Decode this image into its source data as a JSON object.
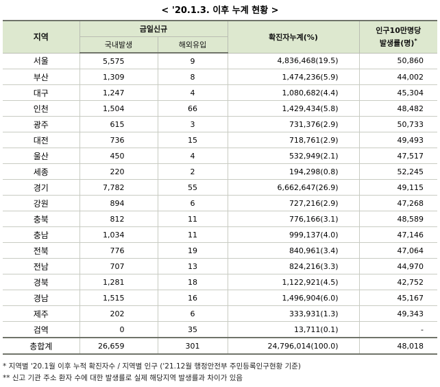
{
  "title": "< '20.1.3. 이후 누계 현황 >",
  "headers": {
    "region": "지역",
    "new_today": "금일신규",
    "domestic": "국내발생",
    "overseas": "해외유입",
    "cumulative": "확진자누계(%)",
    "rate_line1": "인구10만명당",
    "rate_line2": "발생률(명)",
    "rate_mark": "*"
  },
  "rows": [
    {
      "region": "서울",
      "domestic": "5,575",
      "overseas": "9",
      "cumulative": "4,836,468(19.5)",
      "rate": "50,860"
    },
    {
      "region": "부산",
      "domestic": "1,309",
      "overseas": "8",
      "cumulative": "1,474,236(5.9)",
      "rate": "44,002"
    },
    {
      "region": "대구",
      "domestic": "1,247",
      "overseas": "4",
      "cumulative": "1,080,682(4.4)",
      "rate": "45,304"
    },
    {
      "region": "인천",
      "domestic": "1,504",
      "overseas": "66",
      "cumulative": "1,429,434(5.8)",
      "rate": "48,482"
    },
    {
      "region": "광주",
      "domestic": "615",
      "overseas": "3",
      "cumulative": "731,376(2.9)",
      "rate": "50,733"
    },
    {
      "region": "대전",
      "domestic": "736",
      "overseas": "15",
      "cumulative": "718,761(2.9)",
      "rate": "49,493"
    },
    {
      "region": "울산",
      "domestic": "450",
      "overseas": "4",
      "cumulative": "532,949(2.1)",
      "rate": "47,517"
    },
    {
      "region": "세종",
      "domestic": "220",
      "overseas": "2",
      "cumulative": "194,298(0.8)",
      "rate": "52,245"
    },
    {
      "region": "경기",
      "domestic": "7,782",
      "overseas": "55",
      "cumulative": "6,662,647(26.9)",
      "rate": "49,115"
    },
    {
      "region": "강원",
      "domestic": "894",
      "overseas": "6",
      "cumulative": "727,216(2.9)",
      "rate": "47,268"
    },
    {
      "region": "충북",
      "domestic": "812",
      "overseas": "11",
      "cumulative": "776,166(3.1)",
      "rate": "48,589"
    },
    {
      "region": "충남",
      "domestic": "1,034",
      "overseas": "11",
      "cumulative": "999,137(4.0)",
      "rate": "47,146"
    },
    {
      "region": "전북",
      "domestic": "776",
      "overseas": "19",
      "cumulative": "840,961(3.4)",
      "rate": "47,064"
    },
    {
      "region": "전남",
      "domestic": "707",
      "overseas": "13",
      "cumulative": "824,216(3.3)",
      "rate": "44,970"
    },
    {
      "region": "경북",
      "domestic": "1,281",
      "overseas": "18",
      "cumulative": "1,122,921(4.5)",
      "rate": "42,752"
    },
    {
      "region": "경남",
      "domestic": "1,515",
      "overseas": "16",
      "cumulative": "1,496,904(6.0)",
      "rate": "45,167"
    },
    {
      "region": "제주",
      "domestic": "202",
      "overseas": "6",
      "cumulative": "333,931(1.3)",
      "rate": "49,343"
    },
    {
      "region": "검역",
      "domestic": "0",
      "overseas": "35",
      "cumulative": "13,711(0.1)",
      "rate": "-"
    }
  ],
  "total": {
    "region": "총합계",
    "domestic": "26,659",
    "overseas": "301",
    "cumulative": "24,796,014(100.0)",
    "rate": "48,018"
  },
  "notes": [
    "* 지역별 '20.1월 이후 누적 확진자수 / 지역별 인구 ('21.12월 행정안전부 주민등록인구현황 기준)",
    "** 신고 기관 주소 환자 수에 대한 발생률로 실제 해당지역 발생률과 차이가 있음"
  ]
}
